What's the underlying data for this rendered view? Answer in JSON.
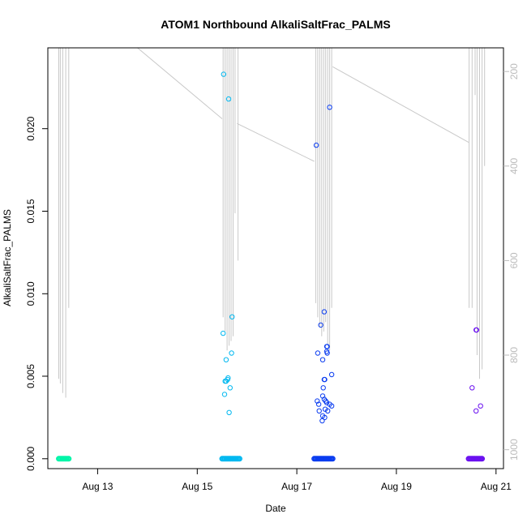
{
  "chart_data": {
    "type": "scatter",
    "title": "ATOM1 Northbound AlkaliSaltFrac_PALMS",
    "xlabel": "Date",
    "ylabel": "AlkaliSaltFrac_PALMS",
    "x_ticks": [
      "Aug 13",
      "Aug 15",
      "Aug 17",
      "Aug 19",
      "Aug 21"
    ],
    "x_tick_values": [
      13,
      15,
      17,
      19,
      21
    ],
    "xlim": [
      12.0,
      21.15
    ],
    "y_ticks": [
      "0.000",
      "0.005",
      "0.010",
      "0.015",
      "0.020"
    ],
    "y_tick_values": [
      0,
      0.005,
      0.01,
      0.015,
      0.02
    ],
    "ylim": [
      -0.0006,
      0.0249
    ],
    "y2_ticks": [
      "200",
      "400",
      "600",
      "800",
      "1000"
    ],
    "y2_tick_values": [
      200,
      400,
      600,
      800,
      1000
    ],
    "y2lim": [
      1040,
      150
    ],
    "y2_reversed": true,
    "grid": false,
    "legend": "none",
    "colors": {
      "flight1": "#00f5a8",
      "flight2": "#00b8f0",
      "flight3": "#0a3cf0",
      "flight4": "#6a10f0",
      "pressure_line": "#c8c8c8"
    },
    "series": [
      {
        "color": "#00f5a8",
        "x_start": 12.22,
        "x_end": 12.42,
        "baseline_y": 0,
        "points": []
      },
      {
        "color": "#00b8f0",
        "x_start": 15.5,
        "x_end": 15.85,
        "baseline_y": 0,
        "points": [
          [
            15.53,
            0.0233
          ],
          [
            15.63,
            0.0218
          ],
          [
            15.7,
            0.0086
          ],
          [
            15.52,
            0.0076
          ],
          [
            15.69,
            0.0064
          ],
          [
            15.58,
            0.006
          ],
          [
            15.62,
            0.0049
          ],
          [
            15.61,
            0.0048
          ],
          [
            15.56,
            0.0047
          ],
          [
            15.58,
            0.0047
          ],
          [
            15.66,
            0.0043
          ],
          [
            15.55,
            0.0039
          ],
          [
            15.64,
            0.0028
          ]
        ]
      },
      {
        "color": "#0a3cf0",
        "x_start": 17.35,
        "x_end": 17.72,
        "baseline_y": 0,
        "points": [
          [
            17.66,
            0.0213
          ],
          [
            17.39,
            0.019
          ],
          [
            17.55,
            0.0089
          ],
          [
            17.48,
            0.0081
          ],
          [
            17.6,
            0.0068
          ],
          [
            17.61,
            0.0068
          ],
          [
            17.42,
            0.0064
          ],
          [
            17.6,
            0.0065
          ],
          [
            17.61,
            0.0064
          ],
          [
            17.52,
            0.006
          ],
          [
            17.7,
            0.0051
          ],
          [
            17.55,
            0.0048
          ],
          [
            17.56,
            0.0048
          ],
          [
            17.53,
            0.0043
          ],
          [
            17.52,
            0.0038
          ],
          [
            17.55,
            0.0036
          ],
          [
            17.41,
            0.0035
          ],
          [
            17.58,
            0.0035
          ],
          [
            17.6,
            0.0034
          ],
          [
            17.44,
            0.0033
          ],
          [
            17.66,
            0.0033
          ],
          [
            17.7,
            0.0032
          ],
          [
            17.57,
            0.003
          ],
          [
            17.45,
            0.0029
          ],
          [
            17.62,
            0.0029
          ],
          [
            17.52,
            0.0026
          ],
          [
            17.56,
            0.0025
          ],
          [
            17.51,
            0.0023
          ]
        ]
      },
      {
        "color": "#6a10f0",
        "x_start": 20.45,
        "x_end": 20.72,
        "baseline_y": 0,
        "points": [
          [
            20.6,
            0.0078
          ],
          [
            20.61,
            0.0078
          ],
          [
            20.52,
            0.0043
          ],
          [
            20.69,
            0.0032
          ],
          [
            20.6,
            0.0029
          ]
        ]
      }
    ],
    "pressure_trace": {
      "axis": "y2",
      "spikes": [
        {
          "x": 12.22,
          "p": 850
        },
        {
          "x": 12.25,
          "p": 860
        },
        {
          "x": 12.3,
          "p": 880
        },
        {
          "x": 12.36,
          "p": 890
        },
        {
          "x": 12.42,
          "p": 700
        },
        {
          "x": 15.52,
          "p": 720
        },
        {
          "x": 15.56,
          "p": 750
        },
        {
          "x": 15.6,
          "p": 790
        },
        {
          "x": 15.64,
          "p": 780
        },
        {
          "x": 15.68,
          "p": 770
        },
        {
          "x": 15.72,
          "p": 760
        },
        {
          "x": 15.76,
          "p": 500
        },
        {
          "x": 15.82,
          "p": 600
        },
        {
          "x": 17.38,
          "p": 690
        },
        {
          "x": 17.42,
          "p": 720
        },
        {
          "x": 17.46,
          "p": 740
        },
        {
          "x": 17.5,
          "p": 760
        },
        {
          "x": 17.54,
          "p": 750
        },
        {
          "x": 17.58,
          "p": 730
        },
        {
          "x": 17.62,
          "p": 780
        },
        {
          "x": 17.66,
          "p": 790
        },
        {
          "x": 17.7,
          "p": 700
        },
        {
          "x": 20.46,
          "p": 700
        },
        {
          "x": 20.52,
          "p": 700
        },
        {
          "x": 20.58,
          "p": 250
        },
        {
          "x": 20.62,
          "p": 800
        },
        {
          "x": 20.67,
          "p": 850
        },
        {
          "x": 20.72,
          "p": 830
        },
        {
          "x": 20.77,
          "p": 400
        }
      ],
      "transits": [
        [
          [
            13.8,
            150
          ],
          [
            15.5,
            300
          ]
        ],
        [
          [
            15.8,
            310
          ],
          [
            17.35,
            390
          ]
        ],
        [
          [
            17.72,
            190
          ],
          [
            20.45,
            350
          ]
        ]
      ]
    }
  }
}
